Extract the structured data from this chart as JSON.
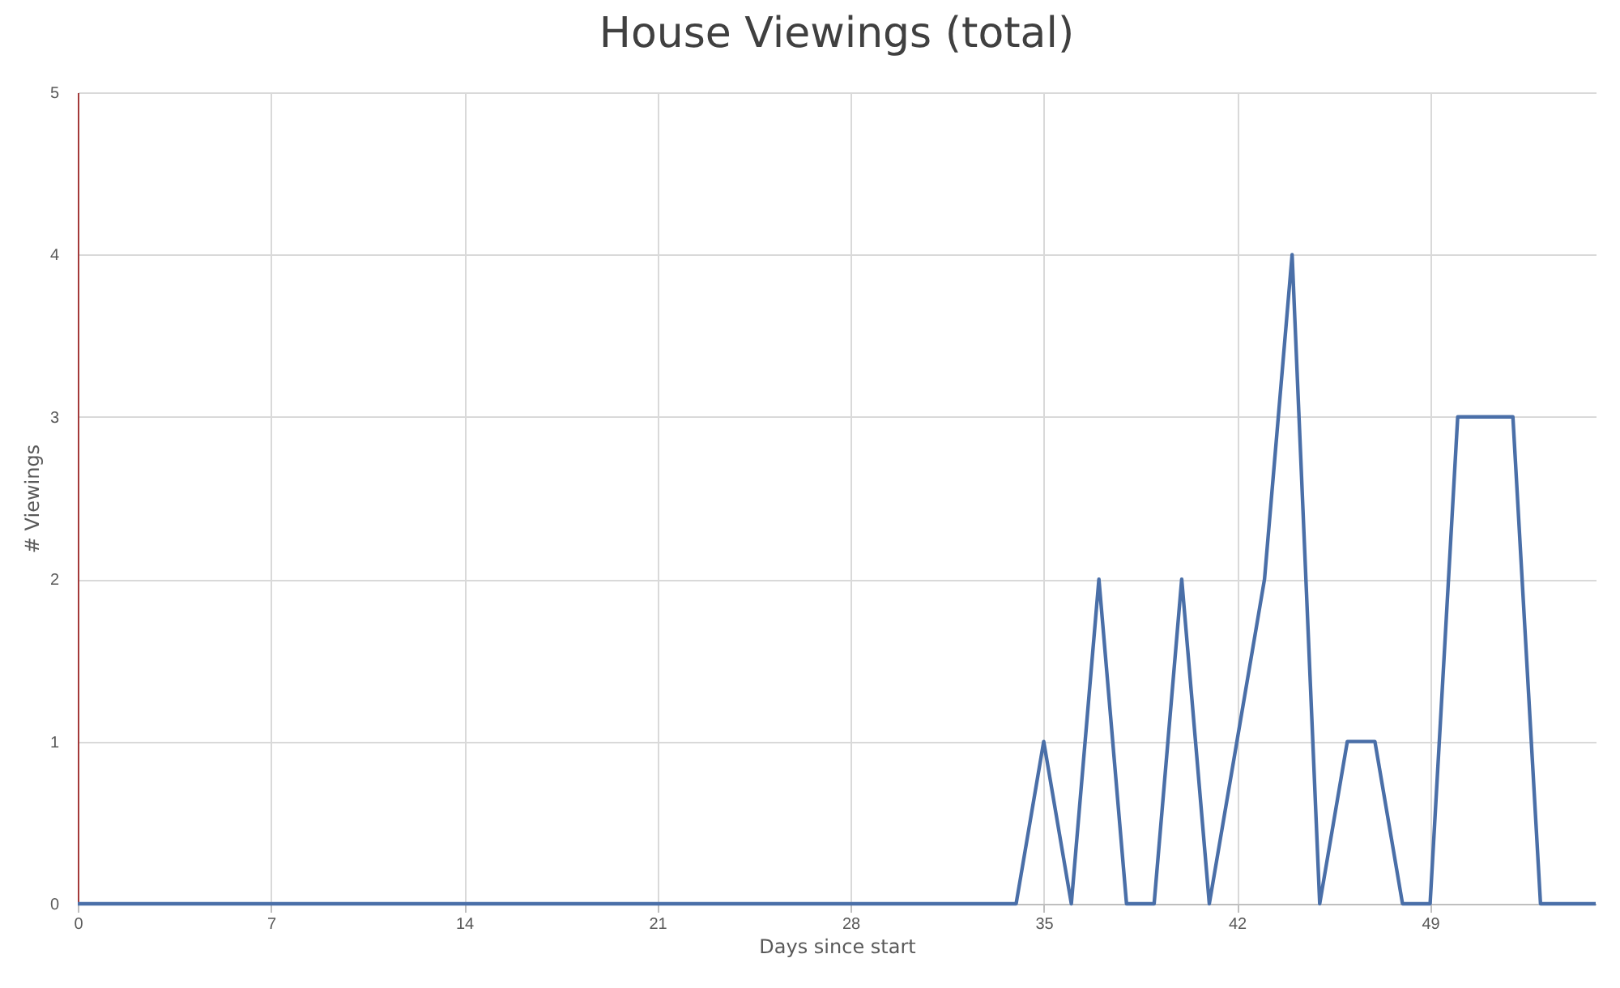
{
  "chart_data": {
    "type": "line",
    "title": "House Viewings (total)",
    "xlabel": "Days since start",
    "ylabel": "# Viewings",
    "x": [
      0,
      1,
      2,
      3,
      4,
      5,
      6,
      7,
      8,
      9,
      10,
      11,
      12,
      13,
      14,
      15,
      16,
      17,
      18,
      19,
      20,
      21,
      22,
      23,
      24,
      25,
      26,
      27,
      28,
      29,
      30,
      31,
      32,
      33,
      34,
      35,
      36,
      37,
      38,
      39,
      40,
      41,
      42,
      43,
      44,
      45,
      46,
      47,
      48,
      49,
      50,
      51,
      52,
      53,
      54,
      55
    ],
    "series": [
      {
        "color": "#4a6fa8",
        "values": [
          0,
          0,
          0,
          0,
          0,
          0,
          0,
          0,
          0,
          0,
          0,
          0,
          0,
          0,
          0,
          0,
          0,
          0,
          0,
          0,
          0,
          0,
          0,
          0,
          0,
          0,
          0,
          0,
          0,
          0,
          0,
          0,
          0,
          0,
          0,
          1,
          0,
          2,
          0,
          0,
          2,
          0,
          1,
          2,
          4,
          0,
          1,
          1,
          0,
          0,
          3,
          3,
          3,
          0,
          0,
          0
        ]
      }
    ],
    "xlim": [
      0,
      55
    ],
    "xticks": [
      0,
      7,
      14,
      21,
      28,
      35,
      42,
      49
    ],
    "ylim": [
      0,
      5
    ],
    "yticks": [
      0,
      1,
      2,
      3,
      4,
      5
    ],
    "grid": true,
    "legend": false,
    "marker": "none",
    "line_style": "solid"
  }
}
